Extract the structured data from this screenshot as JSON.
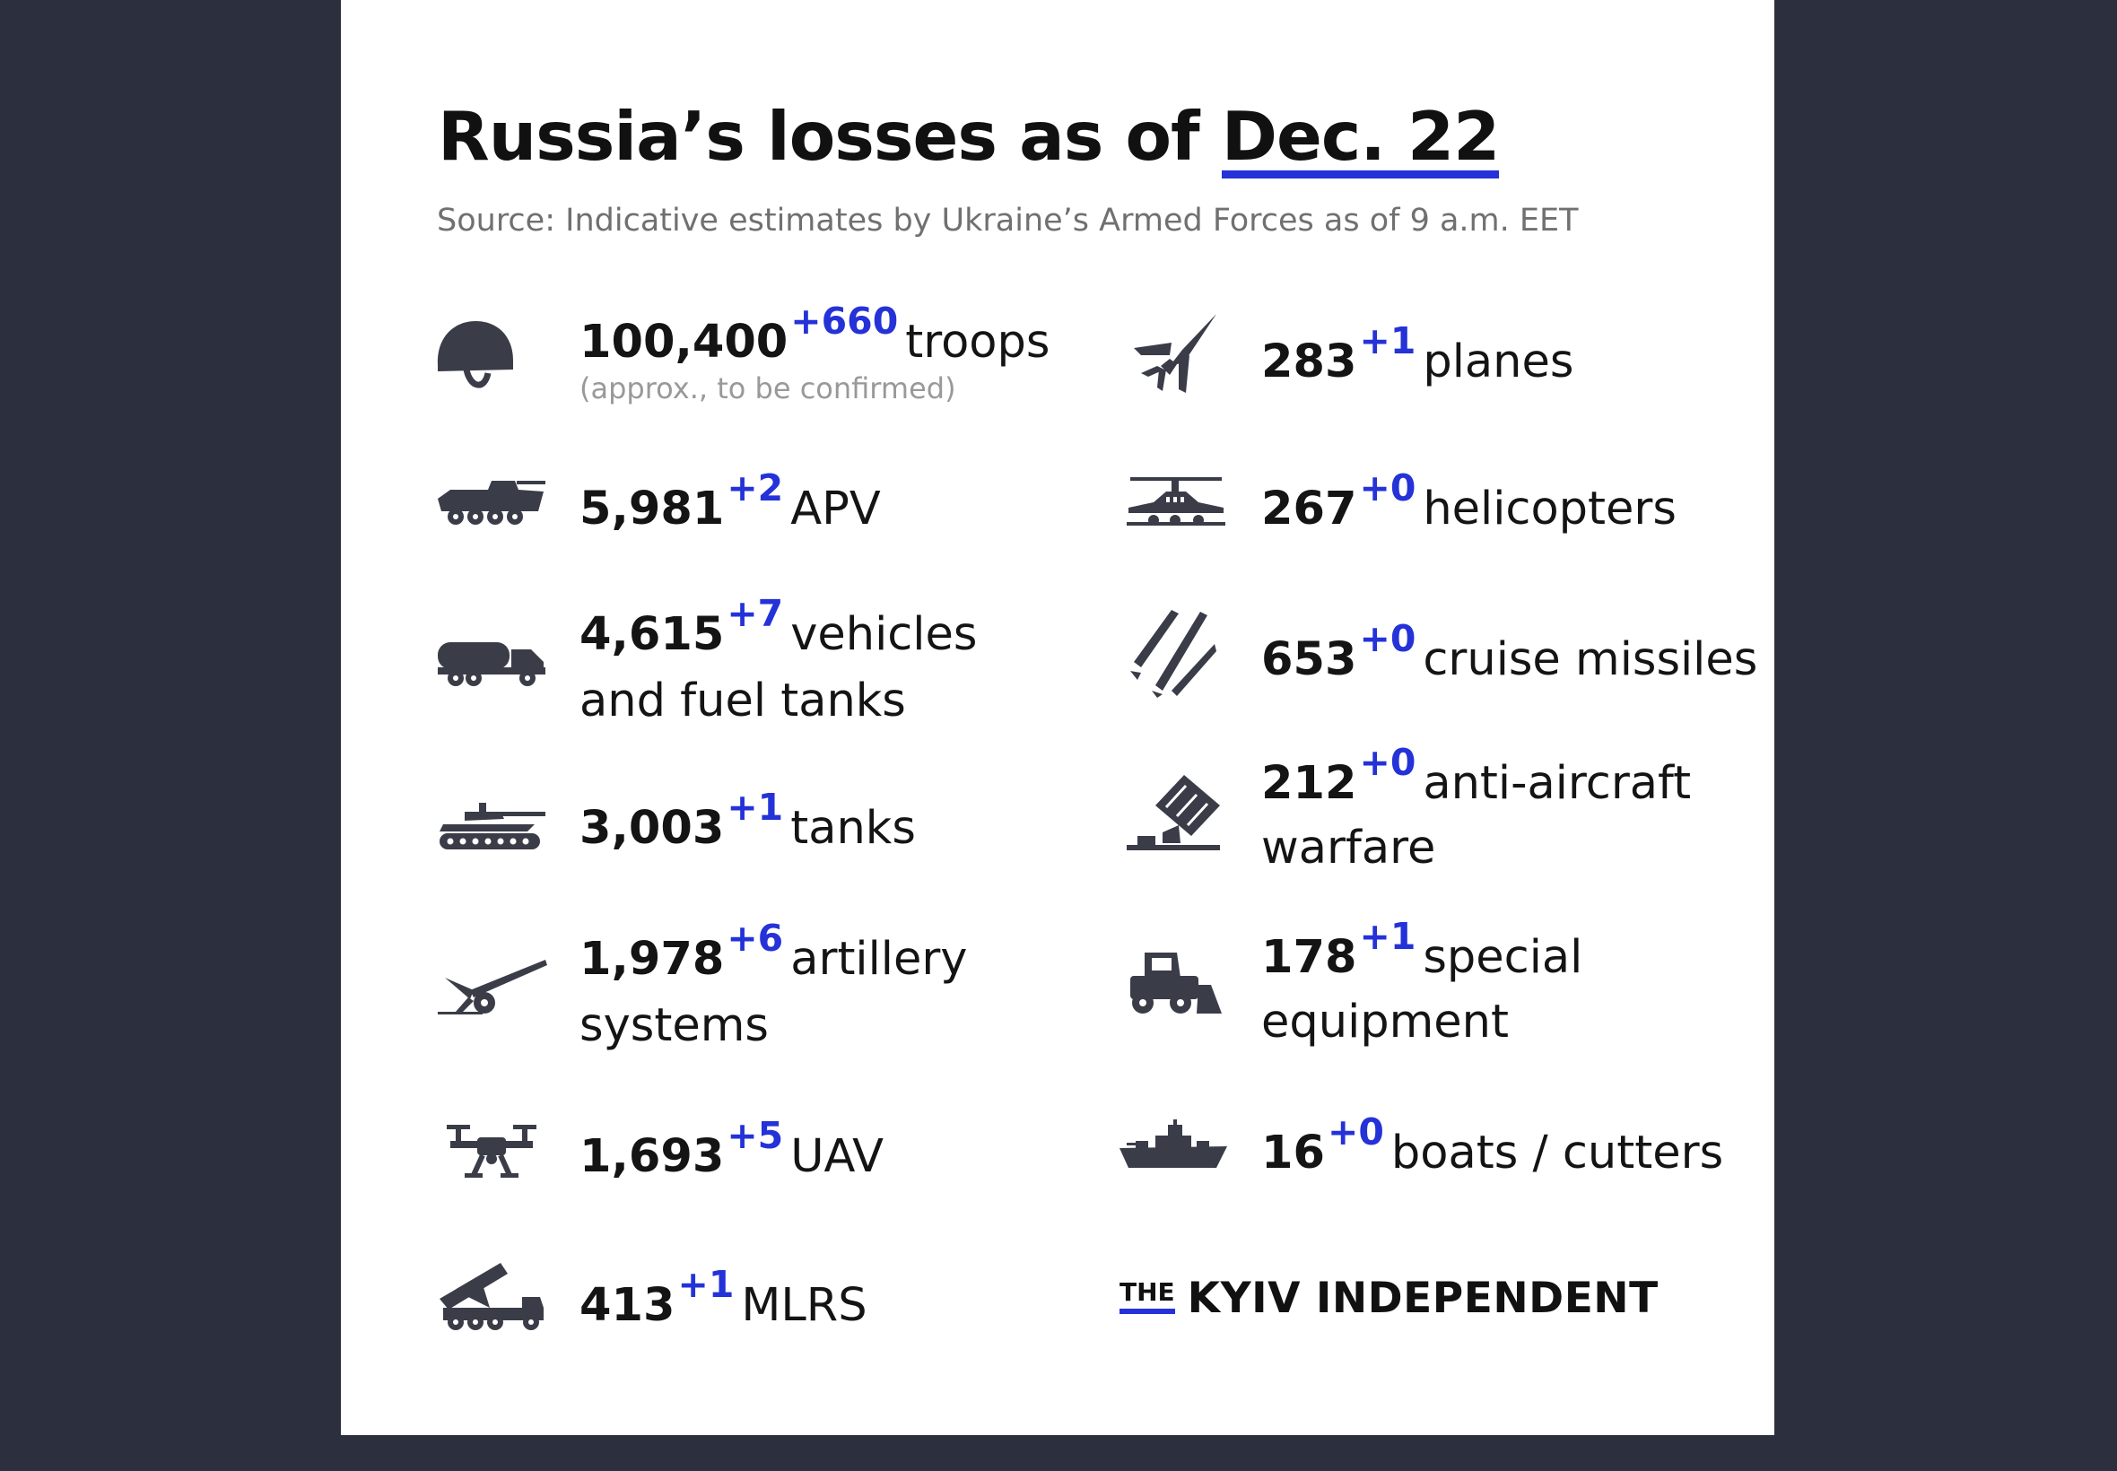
{
  "header": {
    "title_prefix": "Russia’s losses as of ",
    "title_date": "Dec. 22",
    "source": "Source: Indicative estimates by Ukraine’s Armed Forces as of 9 a.m. EET"
  },
  "left_items": [
    {
      "icon": "helmet-icon",
      "value": "100,400",
      "delta": "+660",
      "label": "troops",
      "label2": "",
      "note": "(approx., to be confirmed)"
    },
    {
      "icon": "apv-icon",
      "value": "5,981",
      "delta": "+2",
      "label": "APV",
      "label2": ""
    },
    {
      "icon": "fuel-truck-icon",
      "value": "4,615",
      "delta": "+7",
      "label": "vehicles",
      "label2": "and fuel tanks"
    },
    {
      "icon": "tank-icon",
      "value": "3,003",
      "delta": "+1",
      "label": "tanks",
      "label2": ""
    },
    {
      "icon": "artillery-icon",
      "value": "1,978",
      "delta": "+6",
      "label": "artillery",
      "label2": "systems"
    },
    {
      "icon": "drone-icon",
      "value": "1,693",
      "delta": "+5",
      "label": "UAV",
      "label2": ""
    },
    {
      "icon": "mlrs-icon",
      "value": "413",
      "delta": "+1",
      "label": "MLRS",
      "label2": ""
    }
  ],
  "right_items": [
    {
      "icon": "plane-icon",
      "value": "283",
      "delta": "+1",
      "label": "planes",
      "label2": ""
    },
    {
      "icon": "helicopter-icon",
      "value": "267",
      "delta": "+0",
      "label": "helicopters",
      "label2": ""
    },
    {
      "icon": "missiles-icon",
      "value": "653",
      "delta": "+0",
      "label": "cruise missiles",
      "label2": ""
    },
    {
      "icon": "anti-aircraft-icon",
      "value": "212",
      "delta": "+0",
      "label": "anti-aircraft",
      "label2": "warfare"
    },
    {
      "icon": "bulldozer-icon",
      "value": "178",
      "delta": "+1",
      "label": "special",
      "label2": "equipment"
    },
    {
      "icon": "ship-icon",
      "value": "16",
      "delta": "+0",
      "label": "boats / cutters",
      "label2": ""
    }
  ],
  "brand": {
    "the": "THE",
    "name": "KYIV INDEPENDENT"
  },
  "colors": {
    "accent": "#2432d8",
    "background": "#2b2f3e",
    "card": "#ffffff",
    "icon": "#3a3d48"
  }
}
